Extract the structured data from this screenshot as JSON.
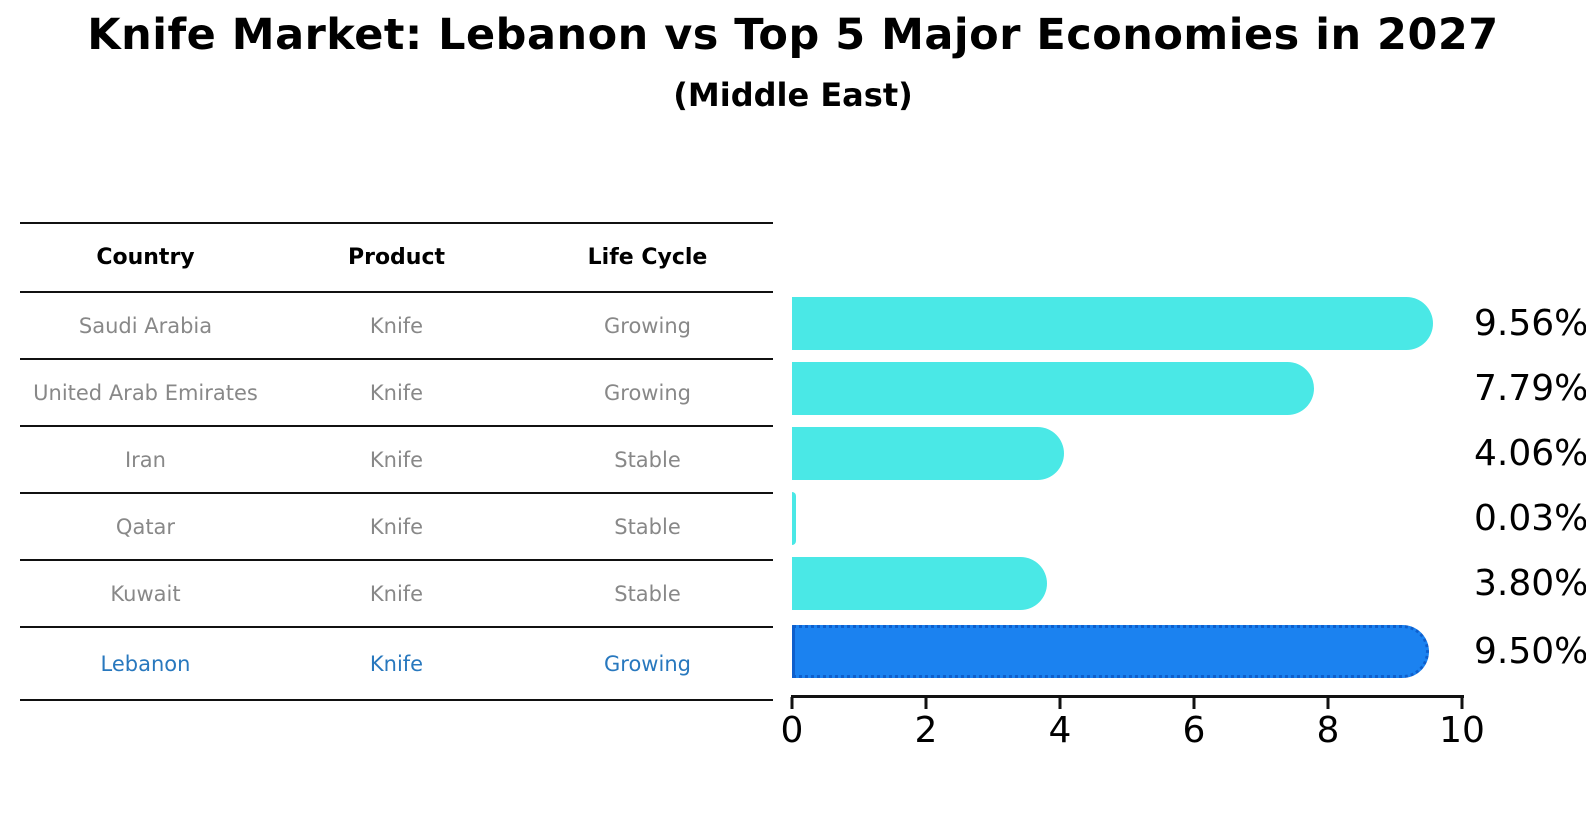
{
  "title": "Knife Market: Lebanon vs Top 5 Major Economies in 2027",
  "subtitle": "(Middle East)",
  "table": {
    "headers": [
      "Country",
      "Product",
      "Life Cycle"
    ],
    "rows": [
      {
        "country": "Saudi Arabia",
        "product": "Knife",
        "life_cycle": "Growing",
        "highlight": false
      },
      {
        "country": "United Arab Emirates",
        "product": "Knife",
        "life_cycle": "Growing",
        "highlight": false
      },
      {
        "country": "Iran",
        "product": "Knife",
        "life_cycle": "Stable",
        "highlight": false
      },
      {
        "country": "Qatar",
        "product": "Knife",
        "life_cycle": "Stable",
        "highlight": false
      },
      {
        "country": "Kuwait",
        "product": "Knife",
        "life_cycle": "Stable",
        "highlight": false
      },
      {
        "country": "Lebanon",
        "product": "Knife",
        "life_cycle": "Growing",
        "highlight": true
      }
    ]
  },
  "chart_data": {
    "type": "bar",
    "orientation": "horizontal",
    "categories": [
      "Saudi Arabia",
      "United Arab Emirates",
      "Iran",
      "Qatar",
      "Kuwait",
      "Lebanon"
    ],
    "values": [
      9.56,
      7.79,
      4.06,
      0.03,
      3.8,
      9.5
    ],
    "labels": [
      "9.56%",
      "7.79%",
      "4.06%",
      "0.03%",
      "3.80%",
      "9.50%"
    ],
    "xlim": [
      0,
      10
    ],
    "xticks": [
      0,
      2,
      4,
      6,
      8,
      10
    ],
    "highlight_index": 5,
    "grid": false,
    "legend": "none",
    "xlabel": "",
    "ylabel": ""
  },
  "colors": {
    "bar": "#4AE8E6",
    "highlight_bar": "#1B82F0",
    "highlight_edge": "#0E5FCC",
    "cell_text": "#888888",
    "highlight_text": "#2878BE",
    "line": "#111111"
  }
}
